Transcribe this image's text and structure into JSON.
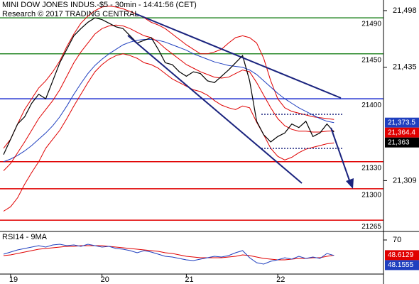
{
  "chart_data": [
    {
      "type": "line",
      "title": "MINI DOW JONES INDUS.-$5 - 30min - 14:41:56 (CET)",
      "subtitle": "Research © 2017 TRADING CENTRAL",
      "categories": [
        null,
        "19",
        null,
        null,
        null,
        null,
        null,
        null,
        null,
        null,
        null,
        null,
        null,
        null,
        "20",
        null,
        null,
        null,
        null,
        null,
        null,
        null,
        null,
        null,
        null,
        null,
        "21",
        null,
        null,
        null,
        null,
        null,
        null,
        null,
        null,
        null,
        null,
        null,
        null,
        "22",
        null,
        null,
        null,
        null,
        null,
        null,
        null,
        null
      ],
      "ylim": [
        21252.5,
        21509.8
      ],
      "yticks": [
        {
          "value": 21498,
          "label": "21,498"
        },
        {
          "value": 21435,
          "label": "21,435"
        },
        {
          "value": 21309,
          "label": "21,309"
        }
      ],
      "levels": [
        {
          "value": 21490,
          "color": "#2e8b2e"
        },
        {
          "value": 21450,
          "color": "#2e8b2e"
        },
        {
          "value": 21400,
          "color": "#1f2fd0"
        },
        {
          "value": 21330,
          "color": "#e00000"
        },
        {
          "value": 21300,
          "color": "#e00000"
        },
        {
          "value": 21265,
          "color": "#e00000"
        }
      ],
      "series": [
        {
          "color": "#e00000",
          "values": [
            21345,
            21355,
            21372,
            21388,
            21400,
            21412,
            21420,
            21430,
            21442,
            21458,
            21472,
            21484,
            21492,
            21498,
            21502,
            21503,
            21502,
            21500,
            21497,
            21494,
            21490,
            21485,
            21482,
            21478,
            21472,
            21466,
            21460,
            21455,
            21450,
            21450,
            21452,
            21455,
            21462,
            21468,
            21470,
            21468,
            21462,
            21445,
            21420,
            21400,
            21390,
            21386,
            21384,
            21382,
            21380,
            21379,
            21378,
            21377
          ]
        },
        {
          "color": "#e00000",
          "values": [
            21275,
            21280,
            21290,
            21305,
            21318,
            21330,
            21345,
            21355,
            21365,
            21378,
            21392,
            21405,
            21418,
            21430,
            21438,
            21444,
            21448,
            21450,
            21448,
            21445,
            21440,
            21438,
            21434,
            21428,
            21422,
            21418,
            21414,
            21410,
            21408,
            21404,
            21398,
            21393,
            21390,
            21388,
            21392,
            21390,
            21374,
            21360,
            21345,
            21336,
            21332,
            21335,
            21340,
            21344,
            21346,
            21348,
            21350,
            21351
          ]
        },
        {
          "color": "#1f3fbf",
          "last_label": "21,373.5",
          "values": [
            21330,
            21333,
            21337,
            21342,
            21348,
            21355,
            21362,
            21370,
            21380,
            21392,
            21405,
            21417,
            21428,
            21437,
            21444,
            21450,
            21455,
            21460,
            21463,
            21465,
            21466,
            21466,
            21465,
            21463,
            21460,
            21457,
            21454,
            21450,
            21447,
            21444,
            21441,
            21439,
            21437,
            21436,
            21435,
            21432,
            21427,
            21420,
            21413,
            21406,
            21400,
            21395,
            21390,
            21386,
            21382,
            21378,
            21375,
            21373.5
          ]
        },
        {
          "color": "#e00000",
          "last_label": "21,364.4",
          "values": [
            21320,
            21328,
            21340,
            21352,
            21365,
            21378,
            21388,
            21398,
            21410,
            21425,
            21440,
            21452,
            21462,
            21472,
            21478,
            21481,
            21482,
            21481,
            21478,
            21474,
            21470,
            21468,
            21463,
            21456,
            21450,
            21444,
            21438,
            21434,
            21430,
            21427,
            21424,
            21423,
            21424,
            21428,
            21432,
            21430,
            21418,
            21404,
            21390,
            21378,
            21370,
            21366,
            21364,
            21364,
            21363,
            21363,
            21364,
            21364.4
          ]
        },
        {
          "color": "#000000",
          "last_label": "21,363",
          "values": [
            21338,
            21355,
            21372,
            21380,
            21395,
            21405,
            21400,
            21420,
            21440,
            21455,
            21470,
            21478,
            21485,
            21490,
            21488,
            21484,
            21480,
            21478,
            21470,
            21462,
            21465,
            21468,
            21455,
            21440,
            21438,
            21430,
            21425,
            21430,
            21428,
            21420,
            21418,
            21425,
            21432,
            21440,
            21448,
            21420,
            21375,
            21360,
            21352,
            21358,
            21362,
            21372,
            21368,
            21375,
            21358,
            21362,
            21372,
            21363
          ]
        }
      ]
    },
    {
      "type": "line",
      "title": "RSI14 - 9MA",
      "ylim": [
        22,
        80
      ],
      "yticks": [
        70
      ],
      "series": [
        {
          "color": "#e00000",
          "last_label": "48.6129",
          "values": [
            48,
            49,
            51,
            53,
            55,
            57,
            58,
            59,
            60,
            61,
            61,
            62,
            62,
            62,
            62,
            61,
            60,
            59,
            58,
            57,
            56,
            55,
            54,
            52,
            51,
            49,
            47,
            46,
            45,
            45,
            45,
            45,
            46,
            47,
            49,
            48,
            46,
            44,
            43,
            42,
            42,
            43,
            44,
            44,
            45,
            45,
            47,
            48.6129
          ]
        },
        {
          "color": "#1f3fbf",
          "last_label": "48.1555",
          "values": [
            50,
            53,
            56,
            58,
            60,
            62,
            60,
            63,
            64,
            62,
            63,
            61,
            64,
            62,
            60,
            61,
            58,
            57,
            55,
            52,
            55,
            53,
            50,
            47,
            46,
            44,
            42,
            41,
            43,
            45,
            47,
            46,
            48,
            52,
            55,
            45,
            38,
            36,
            40,
            42,
            45,
            43,
            47,
            44,
            46,
            44,
            51,
            48.1555
          ]
        }
      ]
    }
  ]
}
